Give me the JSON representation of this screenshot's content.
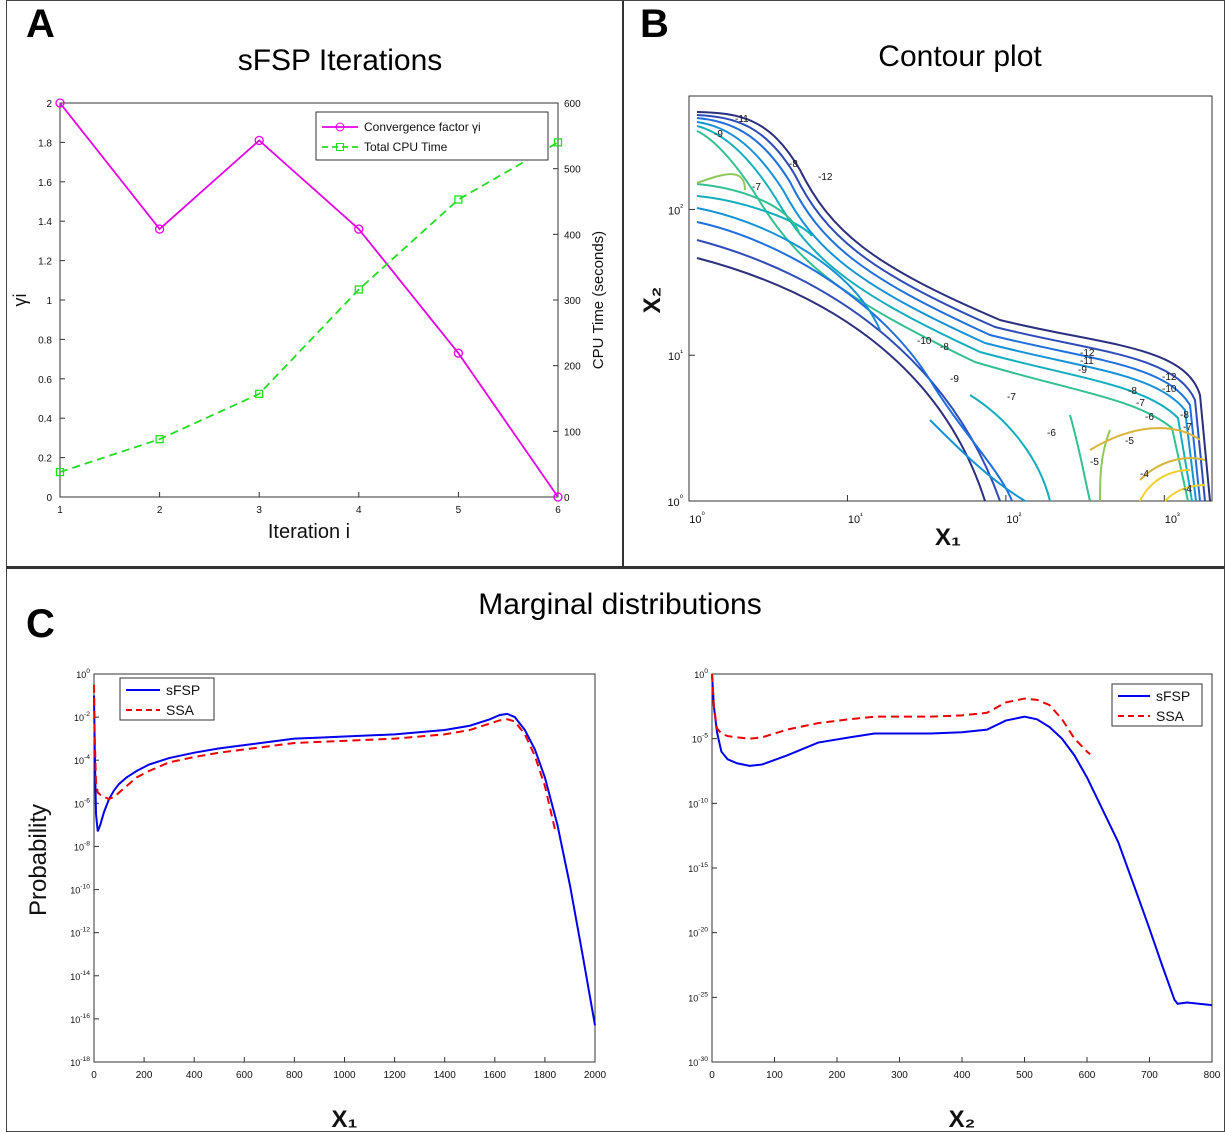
{
  "panels": {
    "a": {
      "letter": "A",
      "title": "sFSP Iterations"
    },
    "b": {
      "letter": "B",
      "title": "Contour plot"
    },
    "c": {
      "letter": "C",
      "title": "Marginal distributions"
    }
  },
  "chart_data": [
    {
      "id": "A",
      "type": "line",
      "title": "sFSP Iterations",
      "xlabel": "Iteration i",
      "ylabel": "γi",
      "ylabel_right": "CPU Time (seconds)",
      "x": [
        1,
        2,
        3,
        4,
        5,
        6
      ],
      "xlim": [
        1,
        6
      ],
      "ylim": [
        0,
        2
      ],
      "ylim_right": [
        0,
        600
      ],
      "xticks": [
        "1",
        "2",
        "3",
        "4",
        "5",
        "6"
      ],
      "yticks": [
        "0",
        "0.2",
        "0.4",
        "0.6",
        "0.8",
        "1",
        "1.2",
        "1.4",
        "1.6",
        "1.8",
        "2"
      ],
      "yticks_right": [
        "0",
        "100",
        "200",
        "300",
        "400",
        "500",
        "600"
      ],
      "legend_position": "top-right",
      "series": [
        {
          "name": "Convergence factor γi",
          "axis": "left",
          "color": "#e600e6",
          "marker": "circle",
          "line": "solid",
          "values": [
            2.0,
            1.36,
            1.81,
            1.36,
            0.73,
            0.0
          ]
        },
        {
          "name": "Total CPU Time",
          "axis": "right",
          "color": "#22dd22",
          "marker": "square",
          "line": "dashed",
          "values": [
            38,
            88,
            157,
            316,
            453,
            540
          ]
        }
      ]
    },
    {
      "id": "B",
      "type": "contour",
      "title": "Contour plot",
      "xlabel": "X₁",
      "ylabel": "X₂",
      "xscale": "log",
      "yscale": "log",
      "xlim": [
        1,
        2000
      ],
      "ylim": [
        1,
        600
      ],
      "xticks": [
        "10⁰",
        "10¹",
        "10²",
        "10³"
      ],
      "yticks": [
        "10⁰",
        "10¹",
        "10²"
      ],
      "levels": [
        -12,
        -11,
        -10,
        -9,
        -8,
        -7,
        -6,
        -5,
        -4
      ],
      "level_colors": [
        "#2b2f7d",
        "#2f4bb8",
        "#1f6fdc",
        "#1593d6",
        "#12aebd",
        "#33c08f",
        "#8fc85a",
        "#d8b437",
        "#f1d02c"
      ],
      "contour_labels": [
        "-12",
        "-11",
        "-10",
        "-9",
        "-8",
        "-7",
        "-6",
        "-5",
        "-4"
      ]
    },
    {
      "id": "C-left",
      "type": "line",
      "xlabel": "X₁",
      "ylabel": "Probability",
      "yscale": "log",
      "xlim": [
        0,
        2000
      ],
      "ylim_exp": [
        -18,
        0
      ],
      "xticks": [
        "0",
        "200",
        "400",
        "600",
        "800",
        "1000",
        "1200",
        "1400",
        "1600",
        "1800",
        "2000"
      ],
      "ytick_exponents": [
        "0",
        "-2",
        "-4",
        "-6",
        "-8",
        "-10",
        "-12",
        "-14",
        "-16",
        "-18"
      ],
      "legend_position": "top-left",
      "series": [
        {
          "name": "sFSP",
          "color": "#0000ee",
          "line": "solid",
          "x": [
            0,
            3,
            8,
            15,
            25,
            40,
            60,
            80,
            100,
            130,
            170,
            220,
            300,
            400,
            500,
            600,
            700,
            800,
            900,
            1000,
            1200,
            1400,
            1500,
            1580,
            1620,
            1650,
            1680,
            1720,
            1760,
            1800,
            1850,
            1900,
            1950,
            2000
          ],
          "log10_y": [
            -1.0,
            -3.5,
            -6.5,
            -7.3,
            -7.0,
            -6.4,
            -5.8,
            -5.4,
            -5.1,
            -4.8,
            -4.5,
            -4.2,
            -3.9,
            -3.65,
            -3.45,
            -3.3,
            -3.15,
            -3.0,
            -2.95,
            -2.9,
            -2.8,
            -2.6,
            -2.4,
            -2.1,
            -1.9,
            -1.85,
            -2.0,
            -2.6,
            -3.5,
            -4.8,
            -7.0,
            -9.8,
            -13.0,
            -16.3
          ]
        },
        {
          "name": "SSA",
          "color": "#ee0000",
          "line": "dashed",
          "x": [
            0,
            3,
            8,
            15,
            25,
            40,
            60,
            80,
            100,
            130,
            170,
            220,
            300,
            400,
            500,
            600,
            700,
            800,
            900,
            1000,
            1200,
            1400,
            1500,
            1580,
            1620,
            1650,
            1680,
            1720,
            1760,
            1800,
            1820,
            1840
          ],
          "log10_y": [
            -0.5,
            -3.0,
            -5.0,
            -5.5,
            -5.6,
            -5.7,
            -5.8,
            -5.7,
            -5.5,
            -5.2,
            -4.8,
            -4.5,
            -4.1,
            -3.85,
            -3.65,
            -3.5,
            -3.35,
            -3.2,
            -3.15,
            -3.1,
            -3.0,
            -2.8,
            -2.6,
            -2.3,
            -2.15,
            -2.1,
            -2.2,
            -2.8,
            -3.8,
            -5.2,
            -6.2,
            -7.2
          ]
        }
      ]
    },
    {
      "id": "C-right",
      "type": "line",
      "xlabel": "X₂",
      "yscale": "log",
      "xlim": [
        0,
        800
      ],
      "ylim_exp": [
        -30,
        0
      ],
      "xticks": [
        "0",
        "100",
        "200",
        "300",
        "400",
        "500",
        "600",
        "700",
        "800"
      ],
      "ytick_exponents": [
        "0",
        "-5",
        "-10",
        "-15",
        "-20",
        "-25",
        "-30"
      ],
      "legend_position": "top-right",
      "series": [
        {
          "name": "sFSP",
          "color": "#0000ee",
          "line": "solid",
          "x": [
            0,
            3,
            8,
            15,
            25,
            40,
            60,
            80,
            120,
            170,
            220,
            260,
            300,
            350,
            400,
            440,
            470,
            500,
            520,
            540,
            560,
            580,
            600,
            620,
            650,
            680,
            700,
            720,
            740,
            745,
            760,
            800
          ],
          "log10_y": [
            0,
            -2.5,
            -4.5,
            -6.0,
            -6.6,
            -6.9,
            -7.1,
            -7.0,
            -6.3,
            -5.3,
            -4.9,
            -4.6,
            -4.6,
            -4.6,
            -4.5,
            -4.3,
            -3.6,
            -3.3,
            -3.5,
            -4.1,
            -5.0,
            -6.3,
            -8.0,
            -10.0,
            -13.0,
            -17.0,
            -19.7,
            -22.5,
            -25.2,
            -25.5,
            -25.4,
            -25.6
          ]
        },
        {
          "name": "SSA",
          "color": "#ee0000",
          "line": "dashed",
          "x": [
            0,
            3,
            8,
            15,
            25,
            40,
            60,
            80,
            120,
            170,
            220,
            260,
            300,
            350,
            400,
            440,
            470,
            500,
            520,
            540,
            560,
            580,
            600,
            605
          ],
          "log10_y": [
            0,
            -2.5,
            -4.2,
            -4.6,
            -4.8,
            -4.9,
            -5.0,
            -4.9,
            -4.3,
            -3.8,
            -3.5,
            -3.3,
            -3.3,
            -3.3,
            -3.2,
            -3.0,
            -2.2,
            -1.9,
            -2.0,
            -2.4,
            -3.5,
            -5.0,
            -6.0,
            -6.2
          ]
        }
      ]
    }
  ]
}
